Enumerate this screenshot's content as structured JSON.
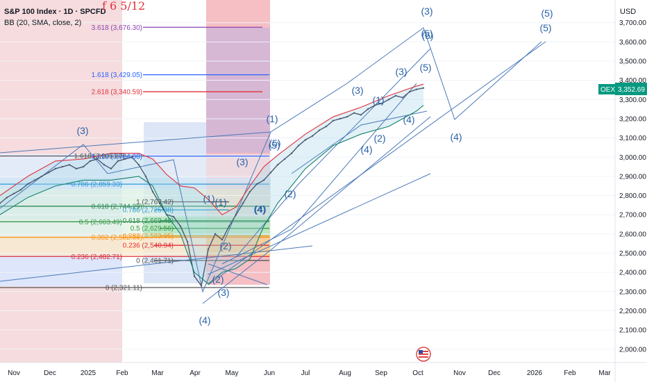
{
  "chart_data": {
    "type": "line",
    "title": "S&P 100 Index · 1D · SPCFD",
    "indicator": "BB (20, SMA, close, 2)",
    "annotation": "f 6 5/12",
    "currency": "USD",
    "ticker_badge": "OEX",
    "last_price": "3,352.69",
    "ylim": [
      1950,
      3780
    ],
    "y_ticks": [
      "2,000.00",
      "2,100.00",
      "2,200.00",
      "2,300.00",
      "2,400.00",
      "2,500.00",
      "2,600.00",
      "2,700.00",
      "2,800.00",
      "2,900.00",
      "3,000.00",
      "3,100.00",
      "3,200.00",
      "3,300.00",
      "3,400.00",
      "3,500.00",
      "3,600.00",
      "3,700.00"
    ],
    "x_ticks": [
      "Nov",
      "Dec",
      "2025",
      "Feb",
      "Mar",
      "Apr",
      "May",
      "Jun",
      "Jul",
      "Aug",
      "Sep",
      "Oct",
      "Nov",
      "Dec",
      "2026",
      "Feb",
      "Mar"
    ],
    "colors": {
      "price": "#4a5a70",
      "bb_upper": "#e0303a",
      "bb_lower": "#15806a",
      "bb_fill": "#a8d8e8",
      "wave": "#4a78b8",
      "axis_text": "#131722",
      "badge": "#089981"
    },
    "fib_labels": [
      {
        "text": "3.618 (3,676.30)",
        "value": 3676.3,
        "color": "#8b44b0"
      },
      {
        "text": "1.618 (3,429.05)",
        "value": 3429.05,
        "color": "#2962ff"
      },
      {
        "text": "2.618 (3,340.59)",
        "value": 3340.59,
        "color": "#e0303a"
      },
      {
        "text": "1.618 (3,004.88)",
        "value": 3004.88,
        "color": "#2962ff"
      },
      {
        "text": "1.618 (3,005.87)",
        "value": 3005.87,
        "color": "#555555"
      },
      {
        "text": "0.786 (2,859.33)",
        "value": 2859.33,
        "color": "#2d9ad4"
      },
      {
        "text": "1 (2,767.42)",
        "value": 2767.42,
        "color": "#555555"
      },
      {
        "text": "0.618 (2,744.29)",
        "value": 2744.29,
        "color": "#2e8b57"
      },
      {
        "text": "0.786 (2,725.38)",
        "value": 2725.38,
        "color": "#2d9ad4"
      },
      {
        "text": "0.618 (2,669.48)",
        "value": 2669.48,
        "color": "#2e8b57"
      },
      {
        "text": "0.5 (2,663.49)",
        "value": 2663.49,
        "color": "#3a9a4a"
      },
      {
        "text": "0.5 (2,629.56)",
        "value": 2629.56,
        "color": "#3a9a4a"
      },
      {
        "text": "0.382 (2,589.95)",
        "value": 2589.95,
        "color": "#f7931a"
      },
      {
        "text": "0.382 (2,582.69)",
        "value": 2582.69,
        "color": "#f7931a"
      },
      {
        "text": "0.236 (2,540.94)",
        "value": 2540.94,
        "color": "#e0303a"
      },
      {
        "text": "0.236 (2,482.71)",
        "value": 2482.71,
        "color": "#e0303a"
      },
      {
        "text": "0 (2,461.71)",
        "value": 2461.71,
        "color": "#555555"
      },
      {
        "text": "0 (2,321.11)",
        "value": 2321.11,
        "color": "#555555"
      }
    ],
    "wave_labels": [
      "(3)",
      "(4)",
      "(1)",
      "(2)",
      "(3)",
      "(4)",
      "(5)",
      "(1)",
      "(2)",
      "(3)",
      "(4)",
      "(5)",
      "(1)",
      "(2)",
      "(3)",
      "(4)",
      "(5)",
      "(1)",
      "(2)",
      "(3)",
      "(4)",
      "(5)",
      "(3)",
      "(5)",
      "(4)",
      "(5)",
      "(5)"
    ],
    "series": [
      {
        "name": "S&P 100 Index",
        "x": [
          0,
          10,
          20,
          30,
          40,
          50,
          60,
          70,
          80,
          90,
          100,
          110,
          120,
          130,
          140,
          150,
          160,
          170,
          180,
          190,
          200,
          210,
          220,
          230,
          240,
          250,
          260,
          270,
          280,
          290,
          300,
          310,
          320,
          330,
          340,
          350,
          360,
          370,
          380,
          390,
          400,
          410,
          420,
          430,
          440,
          450,
          460,
          470,
          480,
          490,
          500,
          510,
          520,
          530,
          540,
          550,
          560,
          570,
          580,
          590,
          600,
          610
        ],
        "values": [
          2760,
          2790,
          2810,
          2830,
          2860,
          2880,
          2900,
          2920,
          2940,
          2950,
          2960,
          2940,
          2950,
          2980,
          2990,
          2960,
          2940,
          2980,
          2990,
          3000,
          2960,
          2900,
          2820,
          2760,
          2700,
          2690,
          2640,
          2560,
          2380,
          2330,
          2520,
          2600,
          2570,
          2640,
          2700,
          2760,
          2820,
          2860,
          2880,
          2920,
          2960,
          2990,
          3020,
          3060,
          3090,
          3110,
          3140,
          3160,
          3190,
          3200,
          3210,
          3230,
          3220,
          3250,
          3270,
          3280,
          3300,
          3320,
          3310,
          3340,
          3352.69,
          3360
        ]
      },
      {
        "name": "BB upper",
        "x": [
          0,
          40,
          80,
          120,
          160,
          200,
          220,
          240,
          260,
          280,
          300,
          320,
          340,
          360,
          380,
          400,
          440,
          480,
          520,
          560,
          600,
          610
        ],
        "values": [
          2800,
          2900,
          2980,
          2990,
          3020,
          3020,
          2990,
          2910,
          2850,
          2840,
          2780,
          2700,
          2740,
          2850,
          2950,
          3010,
          3120,
          3210,
          3260,
          3320,
          3370,
          3380
        ]
      },
      {
        "name": "BB lower",
        "x": [
          0,
          40,
          80,
          120,
          160,
          200,
          220,
          240,
          260,
          280,
          300,
          320,
          340,
          360,
          380,
          400,
          440,
          480,
          520,
          560,
          600,
          610
        ],
        "values": [
          2700,
          2790,
          2850,
          2880,
          2880,
          2900,
          2850,
          2700,
          2600,
          2400,
          2340,
          2400,
          2420,
          2470,
          2640,
          2760,
          2940,
          3060,
          3120,
          3160,
          3240,
          3270
        ]
      }
    ]
  }
}
